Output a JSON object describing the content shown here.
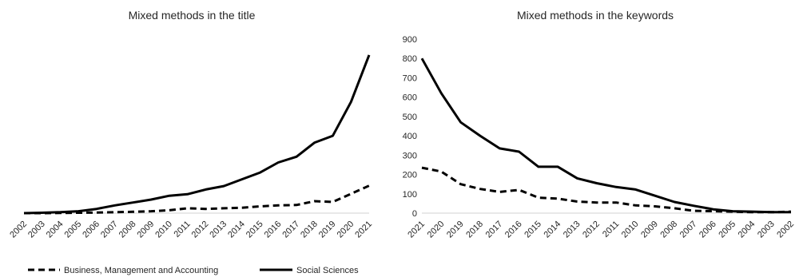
{
  "chart_data": [
    {
      "type": "line",
      "title": "Mixed methods in the title",
      "x": [
        "2002",
        "2003",
        "2004",
        "2005",
        "2006",
        "2007",
        "2008",
        "2009",
        "2010",
        "2011",
        "2012",
        "2013",
        "2014",
        "2015",
        "2016",
        "2017",
        "2018",
        "2019",
        "2020",
        "2021"
      ],
      "ylim": [
        0,
        900
      ],
      "y_ticks_shown": false,
      "grid": false,
      "series": [
        {
          "name": "Business, Management and Accounting",
          "style": "dashed",
          "color": "#000000",
          "values": [
            0,
            0,
            1,
            2,
            3,
            5,
            7,
            10,
            15,
            25,
            22,
            25,
            28,
            35,
            40,
            42,
            62,
            58,
            100,
            142
          ]
        },
        {
          "name": "Social Sciences",
          "style": "solid",
          "color": "#000000",
          "values": [
            0,
            2,
            5,
            10,
            22,
            40,
            55,
            70,
            90,
            98,
            122,
            140,
            175,
            210,
            262,
            292,
            365,
            400,
            575,
            818
          ]
        }
      ]
    },
    {
      "type": "line",
      "title": "Mixed methods in the keywords",
      "x": [
        "2021",
        "2020",
        "2019",
        "2018",
        "2017",
        "2016",
        "2015",
        "2014",
        "2013",
        "2012",
        "2011",
        "2010",
        "2009",
        "2008",
        "2007",
        "2006",
        "2005",
        "2004",
        "2003",
        "2002"
      ],
      "ylim": [
        0,
        900
      ],
      "y_ticks": [
        0,
        100,
        200,
        300,
        400,
        500,
        600,
        700,
        800,
        900
      ],
      "grid": false,
      "series": [
        {
          "name": "Business, Management and Accounting",
          "style": "dashed",
          "color": "#000000",
          "values": [
            235,
            215,
            150,
            125,
            110,
            120,
            80,
            75,
            60,
            55,
            55,
            40,
            35,
            25,
            12,
            10,
            8,
            5,
            5,
            8
          ]
        },
        {
          "name": "Social Sciences",
          "style": "solid",
          "color": "#000000",
          "values": [
            800,
            620,
            470,
            400,
            335,
            318,
            240,
            240,
            180,
            155,
            135,
            122,
            90,
            58,
            38,
            20,
            10,
            8,
            5,
            5
          ]
        }
      ]
    }
  ],
  "legend": {
    "placement": "bottom-left",
    "items": [
      {
        "label": "Business, Management and Accounting",
        "style": "dashed"
      },
      {
        "label": "Social Sciences",
        "style": "solid"
      }
    ]
  }
}
